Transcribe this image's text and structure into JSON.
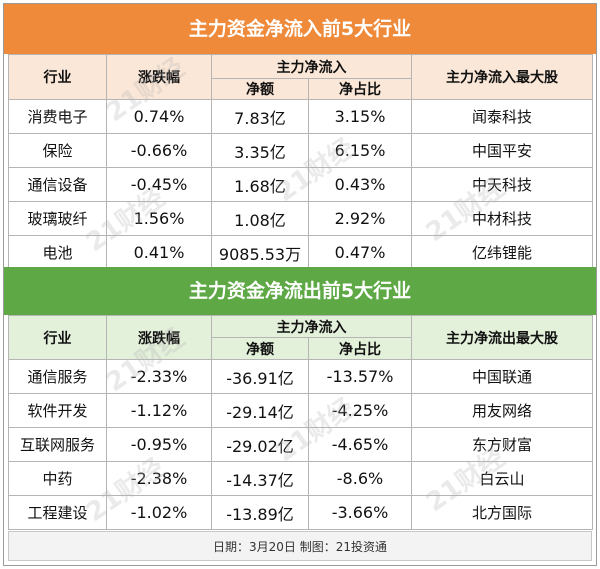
{
  "inflow": {
    "title": "主力资金净流入前5大行业",
    "headers": {
      "industry": "行业",
      "change": "涨跌幅",
      "group": "主力净流入",
      "amount": "净额",
      "ratio": "净占比",
      "top_stock": "主力净流入最大股"
    },
    "rows": [
      {
        "industry": "消费电子",
        "change": "0.74%",
        "amount": "7.83亿",
        "ratio": "3.15%",
        "stock": "闻泰科技"
      },
      {
        "industry": "保险",
        "change": "-0.66%",
        "amount": "3.35亿",
        "ratio": "6.15%",
        "stock": "中国平安"
      },
      {
        "industry": "通信设备",
        "change": "-0.45%",
        "amount": "1.68亿",
        "ratio": "0.43%",
        "stock": "中天科技"
      },
      {
        "industry": "玻璃玻纤",
        "change": "1.56%",
        "amount": "1.08亿",
        "ratio": "2.92%",
        "stock": "中材科技"
      },
      {
        "industry": "电池",
        "change": "0.41%",
        "amount": "9085.53万",
        "ratio": "0.47%",
        "stock": "亿纬锂能"
      }
    ]
  },
  "outflow": {
    "title": "主力资金净流出前5大行业",
    "headers": {
      "industry": "行业",
      "change": "涨跌幅",
      "group": "主力净流入",
      "amount": "净额",
      "ratio": "净占比",
      "top_stock": "主力净流出最大股"
    },
    "rows": [
      {
        "industry": "通信服务",
        "change": "-2.33%",
        "amount": "-36.91亿",
        "ratio": "-13.57%",
        "stock": "中国联通"
      },
      {
        "industry": "软件开发",
        "change": "-1.12%",
        "amount": "-29.14亿",
        "ratio": "-4.25%",
        "stock": "用友网络"
      },
      {
        "industry": "互联网服务",
        "change": "-0.95%",
        "amount": "-29.02亿",
        "ratio": "-4.65%",
        "stock": "东方财富"
      },
      {
        "industry": "中药",
        "change": "-2.38%",
        "amount": "-14.37亿",
        "ratio": "-8.6%",
        "stock": "白云山"
      },
      {
        "industry": "工程建设",
        "change": "-1.02%",
        "amount": "-13.89亿",
        "ratio": "-3.66%",
        "stock": "北方国际"
      }
    ]
  },
  "footer": "日期：3月20日 制图：21投资通",
  "watermark": "21财经",
  "colors": {
    "inflow_title": "#ee8a3a",
    "inflow_header": "#fbe7d7",
    "outflow_title": "#5ea946",
    "outflow_header": "#e3f0da"
  }
}
